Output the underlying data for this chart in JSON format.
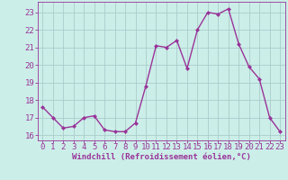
{
  "x": [
    0,
    1,
    2,
    3,
    4,
    5,
    6,
    7,
    8,
    9,
    10,
    11,
    12,
    13,
    14,
    15,
    16,
    17,
    18,
    19,
    20,
    21,
    22,
    23
  ],
  "y": [
    17.6,
    17.0,
    16.4,
    16.5,
    17.0,
    17.1,
    16.3,
    16.2,
    16.2,
    16.7,
    18.8,
    21.1,
    21.0,
    21.4,
    19.8,
    22.0,
    23.0,
    22.9,
    23.2,
    21.2,
    19.9,
    19.2,
    17.0,
    16.2
  ],
  "line_color": "#993399",
  "marker": "D",
  "marker_size": 2.0,
  "linewidth": 1.0,
  "bg_color": "#cceee8",
  "grid_color": "#aacccc",
  "xlabel": "Windchill (Refroidissement éolien,°C)",
  "xlabel_fontsize": 6.5,
  "ylabel_ticks": [
    16,
    17,
    18,
    19,
    20,
    21,
    22,
    23
  ],
  "xlim": [
    -0.5,
    23.5
  ],
  "ylim": [
    15.7,
    23.6
  ],
  "tick_fontsize": 6.5,
  "tick_color": "#993399",
  "spine_color": "#993399"
}
